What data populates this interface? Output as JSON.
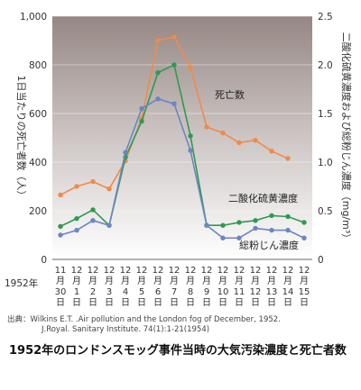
{
  "chart_data": {
    "type": "line",
    "title": "",
    "x": [
      [
        "11",
        "月",
        "30",
        "日"
      ],
      [
        "12",
        "月",
        "1",
        "日"
      ],
      [
        "12",
        "月",
        "2",
        "日"
      ],
      [
        "12",
        "月",
        "3",
        "日"
      ],
      [
        "12",
        "月",
        "4",
        "日"
      ],
      [
        "12",
        "月",
        "5",
        "日"
      ],
      [
        "12",
        "月",
        "6",
        "日"
      ],
      [
        "12",
        "月",
        "7",
        "日"
      ],
      [
        "12",
        "月",
        "8",
        "日"
      ],
      [
        "12",
        "月",
        "9",
        "日"
      ],
      [
        "12",
        "月",
        "10",
        "日"
      ],
      [
        "12",
        "月",
        "11",
        "日"
      ],
      [
        "12",
        "月",
        "12",
        "日"
      ],
      [
        "12",
        "月",
        "13",
        "日"
      ],
      [
        "12",
        "月",
        "14",
        "日"
      ],
      [
        "12",
        "月",
        "15",
        "日"
      ]
    ],
    "year_label": "1952年",
    "ylabel_left": "1日当たりの死亡者数（人）",
    "ylabel_right": "二酸化硫黄濃度および総粉じん濃度（mg/m³）",
    "yticks_left": [
      "0",
      "200",
      "400",
      "600",
      "800",
      "1,000"
    ],
    "yticks_right": [
      "0",
      "0.5",
      "1.0",
      "1.5",
      "2.0",
      "2.5"
    ],
    "ylim_left": [
      0,
      1000
    ],
    "ylim_right": [
      0,
      2.5
    ],
    "series": [
      {
        "name": "死亡数",
        "axis": "left",
        "color": "#f08a4b",
        "values": [
          265,
          300,
          320,
          290,
          405,
          580,
          900,
          915,
          790,
          545,
          520,
          480,
          490,
          445,
          415,
          null
        ]
      },
      {
        "name": "二酸化硫黄濃度",
        "axis": "right",
        "color": "#2e9a50",
        "values": [
          0.34,
          0.42,
          0.51,
          0.35,
          1.05,
          1.42,
          1.92,
          2.0,
          1.27,
          0.35,
          0.35,
          0.38,
          0.4,
          0.45,
          0.44,
          0.38
        ]
      },
      {
        "name": "総粉じん濃度",
        "axis": "right",
        "color": "#6b86c4",
        "values": [
          0.25,
          0.3,
          0.4,
          0.35,
          1.1,
          1.55,
          1.65,
          1.6,
          1.12,
          0.35,
          0.22,
          0.22,
          0.32,
          0.3,
          0.3,
          0.22
        ]
      }
    ]
  },
  "source": {
    "line1": "出典：Wilkins E.T. .Air pollution and the London fog of December, 1952.",
    "line2": "J.Royal. Sanitary Institute. 74(1):1-21(1954)"
  },
  "caption": "1952年のロンドンスモッグ事件当時の大気汚染濃度と死亡者数"
}
